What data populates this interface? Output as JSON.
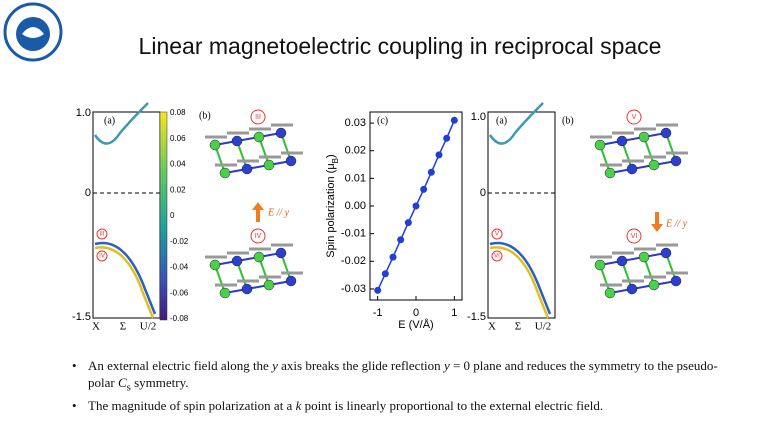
{
  "header": {
    "title": "Linear magnetoelectric coupling in reciprocal space"
  },
  "panels": {
    "left_bands": {
      "label": "(a)",
      "yticks": [
        "1.0",
        "0",
        "-1.5"
      ],
      "xticks": [
        "X",
        "Σ",
        "U/2"
      ],
      "markers": [
        "III",
        "IV"
      ]
    },
    "colorbar": {
      "ticks": [
        "0.08",
        "0.06",
        "0.04",
        "0.02",
        "0",
        "-0.02",
        "-0.04",
        "-0.06",
        "-0.08"
      ]
    },
    "left_crystal": {
      "label": "(b)",
      "top": "III",
      "bottom": "IV",
      "field": "E // y"
    },
    "right_bands": {
      "label": "(a)",
      "yticks": [
        "1.0",
        "0",
        "-1.5"
      ],
      "xticks": [
        "X",
        "Σ",
        "U/2"
      ],
      "markers": [
        "V",
        "VI"
      ]
    },
    "right_crystal": {
      "label": "(b)",
      "top": "V",
      "bottom": "VI",
      "field": "E // y"
    }
  },
  "chart_data": {
    "type": "line",
    "label": "(c)",
    "xlabel": "E (V/Å)",
    "ylabel": [
      "Spin polarization (μ",
      "B",
      ")"
    ],
    "x": [
      -1,
      -0.8,
      -0.6,
      -0.4,
      -0.2,
      0,
      0.2,
      0.4,
      0.6,
      0.8,
      1
    ],
    "values": [
      -0.0305,
      -0.0245,
      -0.0185,
      -0.0122,
      -0.006,
      0,
      0.006,
      0.0122,
      0.0185,
      0.0245,
      0.031
    ],
    "color": "#1f3fd6",
    "xlim": [
      -1.2,
      1.2
    ],
    "xticks": [
      -1,
      0,
      1
    ],
    "ylim": [
      -0.034,
      0.034
    ],
    "yticks": [
      -0.03,
      -0.02,
      -0.01,
      {
        "value": 0,
        "label": "0.00"
      },
      0.01,
      0.02,
      0.03
    ]
  },
  "bullets": [
    [
      "An external electric field along the ",
      "y",
      " axis breaks the glide reflection ",
      "y",
      " = 0 plane and reduces the symmetry to the pseudo-polar ",
      "C",
      "s",
      " symmetry."
    ],
    [
      "The magnitude of spin polarization at a ",
      "k",
      " point is linearly proportional to the external electric field."
    ]
  ]
}
